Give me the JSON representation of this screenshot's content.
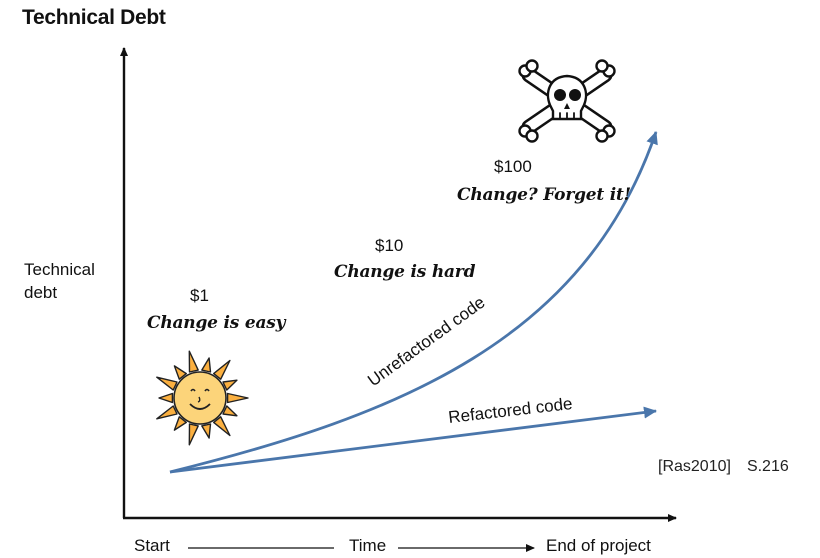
{
  "title": "Technical Debt",
  "y_axis_label_line1": "Technical",
  "y_axis_label_line2": "debt",
  "stages": [
    {
      "cost": "$1",
      "note": "Change is easy"
    },
    {
      "cost": "$10",
      "note": "Change is hard"
    },
    {
      "cost": "$100",
      "note": "Change? Forget it!"
    }
  ],
  "curves": {
    "unrefactored_label": "Unrefactored code",
    "refactored_label": "Refactored code",
    "color": "#4a76ab"
  },
  "x_axis": {
    "start": "Start",
    "middle": "Time",
    "end": "End of project"
  },
  "citation": {
    "source": "[Ras2010]",
    "page": "S.216"
  },
  "icons": {
    "sun": "sun-icon",
    "skull": "skull-crossbones-icon"
  }
}
